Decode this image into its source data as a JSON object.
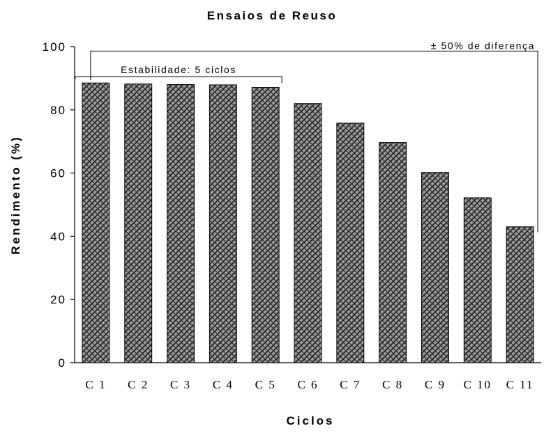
{
  "chart_data": {
    "type": "bar",
    "title": "Ensaios de Reuso",
    "xlabel": "Ciclos",
    "ylabel": "Rendimento (%)",
    "categories": [
      "C 1",
      "C 2",
      "C 3",
      "C 4",
      "C 5",
      "C 6",
      "C 7",
      "C 8",
      "C 9",
      "C 10",
      "C 11"
    ],
    "values": [
      88.5,
      88.2,
      88.0,
      87.9,
      87.1,
      82.0,
      75.8,
      69.7,
      60.2,
      52.2,
      43.0
    ],
    "ylim": [
      0,
      100
    ],
    "yticks": [
      "0",
      "20",
      "40",
      "60",
      "80",
      "100"
    ],
    "grid": false,
    "legend": "none",
    "bar_fill": "hatched gray",
    "colors": {
      "bar_fill": "#9a9a9a",
      "hatch": "#1a1a1a",
      "bar_edge": "#000000"
    },
    "annotations": [
      {
        "text": "Estabilidade: 5 ciclos",
        "from_category": "C 1",
        "to_category": "C 5"
      },
      {
        "text": "± 50% de diferença",
        "from_category": "C 1",
        "to_category": "C 11"
      }
    ]
  }
}
